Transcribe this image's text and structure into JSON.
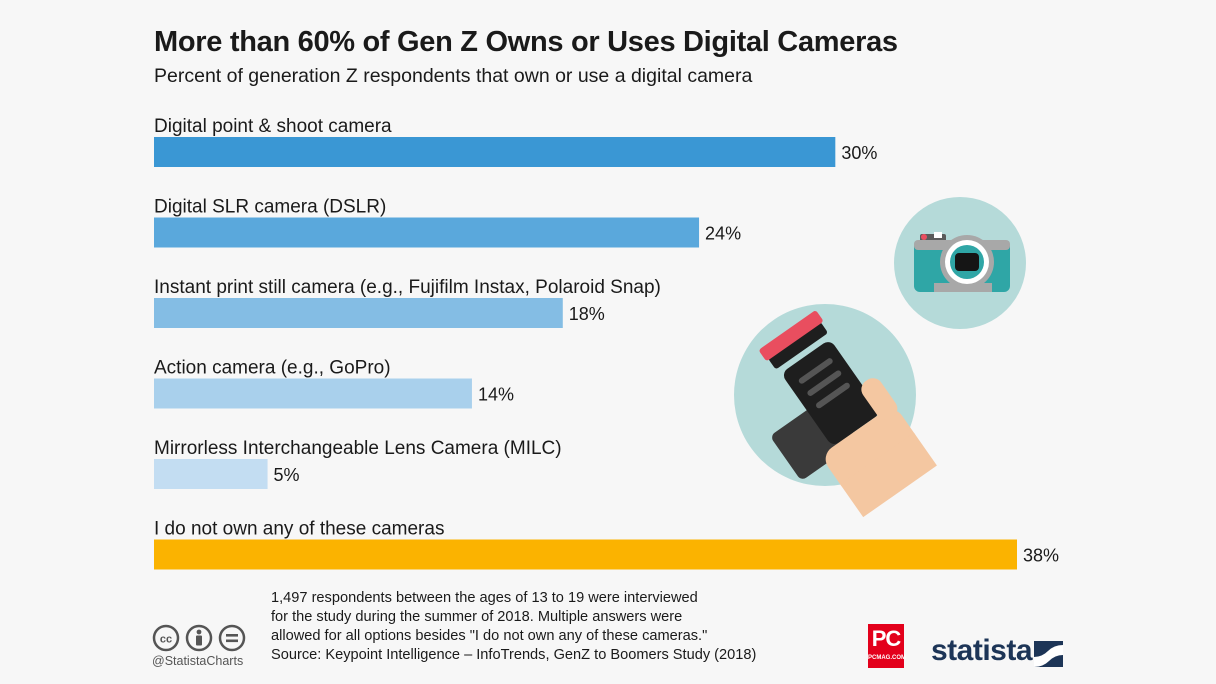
{
  "chart_data": {
    "type": "bar",
    "orientation": "horizontal",
    "title": "More than 60% of Gen Z Owns or Uses Digital Cameras",
    "subtitle": "Percent of generation Z respondents that own or use a digital camera",
    "categories": [
      "Digital point & shoot camera",
      "Digital SLR camera (DSLR)",
      "Instant print still camera (e.g., Fujifilm Instax, Polaroid Snap)",
      "Action camera (e.g., GoPro)",
      "Mirrorless Interchangeable Lens Camera (MILC)",
      "I do not own any of these cameras"
    ],
    "values": [
      30,
      24,
      18,
      14,
      5,
      38
    ],
    "value_labels": [
      "30%",
      "24%",
      "18%",
      "14%",
      "5%",
      "38%"
    ],
    "unit": "%",
    "colors": [
      "#3a97d4",
      "#5aa8dc",
      "#84bde4",
      "#a9d0ec",
      "#c3ddf2",
      "#fbb300"
    ],
    "xlim": [
      0,
      38
    ],
    "grid": false,
    "legend": "none"
  },
  "footer": {
    "note_lines": [
      "1,497 respondents between the ages of 13 to 19 were interviewed",
      "for the study during the summer of 2018. Multiple answers were",
      "allowed for all options besides \"I do not own any of these cameras.\""
    ],
    "source": "Source: Keypoint Intelligence – InfoTrends, GenZ to Boomers Study (2018)",
    "handle": "@StatistaCharts",
    "pc_logo_text": "PC",
    "pc_logo_sub": "PCMAG.COM",
    "brand": "statista"
  },
  "illustrations": [
    "compact-camera-icon",
    "hand-holding-dslr-icon"
  ],
  "icons": [
    "cc-icon",
    "attribution-icon",
    "no-derivatives-icon",
    "statista-mark-icon"
  ]
}
